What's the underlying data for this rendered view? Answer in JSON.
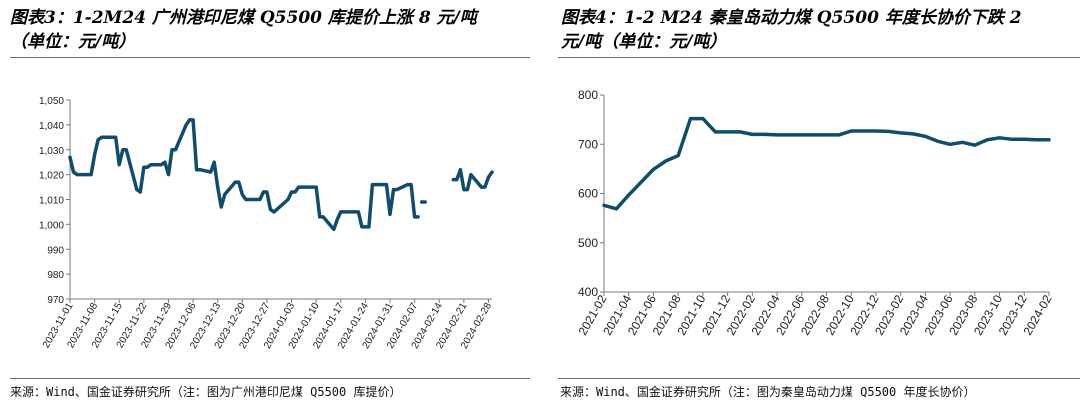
{
  "panels": {
    "left": {
      "title_line1": "图表3：1-2M24 广州港印尼煤 Q5500 库提价上涨 8 元/吨",
      "title_line2": "（单位：元/吨）",
      "source": "来源：Wind、国金证券研究所（注：图为广州港印尼煤 Q5500 库提价）"
    },
    "right": {
      "title_line1": "图表4：1-2 M24 秦皇岛动力煤 Q5500 年度长协价下跌 2",
      "title_line2": "元/吨（单位：元/吨）",
      "source": "来源：Wind、国金证券研究所（注：图为秦皇岛动力煤 Q5500 年度长协价）"
    }
  },
  "colors": {
    "line": "#0f4c6e",
    "axis": "#7a7a7a"
  },
  "chart_data": [
    {
      "type": "line",
      "title": "",
      "xlabel": "",
      "ylabel": "",
      "ylim": [
        970,
        1050
      ],
      "yticks": [
        970,
        980,
        990,
        1000,
        1010,
        1020,
        1030,
        1040,
        1050
      ],
      "ytick_labels": [
        "970",
        "980",
        "990",
        "1,000",
        "1,010",
        "1,020",
        "1,030",
        "1,040",
        "1,050"
      ],
      "xlim": [
        "2023-11-01",
        "2024-02-29"
      ],
      "xtick_labels": [
        "2023-11-01",
        "2023-11-08",
        "2023-11-15",
        "2023-11-22",
        "2023-11-29",
        "2023-12-06",
        "2023-12-13",
        "2023-12-20",
        "2023-12-27",
        "2024-01-03",
        "2024-01-10",
        "2024-01-17",
        "2024-01-24",
        "2024-01-31",
        "2024-02-07",
        "2024-02-14",
        "2024-02-21",
        "2024-02-28"
      ],
      "grid": false,
      "series": [
        {
          "segments": [
            [
              [
                "2023-11-01",
                1027
              ],
              [
                "2023-11-02",
                1021
              ],
              [
                "2023-11-03",
                1020
              ],
              [
                "2023-11-06",
                1020
              ],
              [
                "2023-11-07",
                1020
              ],
              [
                "2023-11-08",
                1028
              ],
              [
                "2023-11-09",
                1034
              ],
              [
                "2023-11-10",
                1035
              ],
              [
                "2023-11-13",
                1035
              ],
              [
                "2023-11-14",
                1035
              ],
              [
                "2023-11-15",
                1024
              ],
              [
                "2023-11-16",
                1030
              ],
              [
                "2023-11-17",
                1030
              ],
              [
                "2023-11-20",
                1014
              ],
              [
                "2023-11-21",
                1013
              ],
              [
                "2023-11-22",
                1023
              ],
              [
                "2023-11-23",
                1023
              ],
              [
                "2023-11-24",
                1024
              ],
              [
                "2023-11-27",
                1024
              ],
              [
                "2023-11-28",
                1025
              ],
              [
                "2023-11-29",
                1020
              ],
              [
                "2023-11-30",
                1030
              ],
              [
                "2023-12-01",
                1030
              ],
              [
                "2023-12-04",
                1040
              ],
              [
                "2023-12-05",
                1042
              ],
              [
                "2023-12-06",
                1042
              ],
              [
                "2023-12-07",
                1022
              ],
              [
                "2023-12-08",
                1022
              ],
              [
                "2023-12-11",
                1021
              ],
              [
                "2023-12-12",
                1025
              ],
              [
                "2023-12-13",
                1015
              ],
              [
                "2023-12-14",
                1007
              ],
              [
                "2023-12-15",
                1012
              ],
              [
                "2023-12-18",
                1017
              ],
              [
                "2023-12-19",
                1017
              ],
              [
                "2023-12-20",
                1012
              ],
              [
                "2023-12-21",
                1010
              ],
              [
                "2023-12-22",
                1010
              ],
              [
                "2023-12-25",
                1010
              ],
              [
                "2023-12-26",
                1013
              ],
              [
                "2023-12-27",
                1013
              ],
              [
                "2023-12-28",
                1006
              ],
              [
                "2023-12-29",
                1005
              ],
              [
                "2024-01-02",
                1010
              ],
              [
                "2024-01-03",
                1013
              ],
              [
                "2024-01-04",
                1013
              ],
              [
                "2024-01-05",
                1015
              ],
              [
                "2024-01-08",
                1015
              ],
              [
                "2024-01-09",
                1015
              ],
              [
                "2024-01-10",
                1015
              ],
              [
                "2024-01-11",
                1003
              ],
              [
                "2024-01-12",
                1003
              ],
              [
                "2024-01-15",
                998
              ],
              [
                "2024-01-16",
                1002
              ],
              [
                "2024-01-17",
                1005
              ],
              [
                "2024-01-18",
                1005
              ],
              [
                "2024-01-19",
                1005
              ],
              [
                "2024-01-22",
                1005
              ],
              [
                "2024-01-23",
                999
              ],
              [
                "2024-01-24",
                999
              ],
              [
                "2024-01-25",
                999
              ],
              [
                "2024-01-26",
                1016
              ],
              [
                "2024-01-29",
                1016
              ],
              [
                "2024-01-30",
                1016
              ],
              [
                "2024-01-31",
                1004
              ],
              [
                "2024-02-01",
                1014
              ],
              [
                "2024-02-02",
                1014
              ],
              [
                "2024-02-05",
                1016
              ],
              [
                "2024-02-06",
                1016
              ],
              [
                "2024-02-07",
                1003
              ],
              [
                "2024-02-08",
                1003
              ]
            ],
            [
              [
                "2024-02-09",
                1009
              ],
              [
                "2024-02-10",
                1009
              ]
            ],
            [
              [
                "2024-02-18",
                1018
              ],
              [
                "2024-02-19",
                1018
              ],
              [
                "2024-02-20",
                1022
              ],
              [
                "2024-02-21",
                1014
              ],
              [
                "2024-02-22",
                1014
              ],
              [
                "2024-02-23",
                1020
              ],
              [
                "2024-02-26",
                1015
              ],
              [
                "2024-02-27",
                1015
              ],
              [
                "2024-02-28",
                1019
              ],
              [
                "2024-02-29",
                1021
              ]
            ]
          ]
        }
      ]
    },
    {
      "type": "line",
      "title": "",
      "xlabel": "",
      "ylabel": "",
      "ylim": [
        400,
        800
      ],
      "yticks": [
        400,
        500,
        600,
        700,
        800
      ],
      "ytick_labels": [
        "400",
        "500",
        "600",
        "700",
        "800"
      ],
      "xlim": [
        "2021-02",
        "2024-02"
      ],
      "xtick_labels": [
        "2021-02",
        "2021-04",
        "2021-06",
        "2021-08",
        "2021-10",
        "2021-12",
        "2022-02",
        "2022-04",
        "2022-06",
        "2022-08",
        "2022-10",
        "2022-12",
        "2023-02",
        "2023-04",
        "2023-06",
        "2023-08",
        "2023-10",
        "2023-12",
        "2024-02"
      ],
      "grid": false,
      "series": [
        {
          "x": [
            "2021-02",
            "2021-03",
            "2021-04",
            "2021-05",
            "2021-06",
            "2021-07",
            "2021-08",
            "2021-09",
            "2021-10",
            "2021-11",
            "2021-12",
            "2022-01",
            "2022-02",
            "2022-03",
            "2022-04",
            "2022-05",
            "2022-06",
            "2022-07",
            "2022-08",
            "2022-09",
            "2022-10",
            "2022-11",
            "2022-12",
            "2023-01",
            "2023-02",
            "2023-03",
            "2023-04",
            "2023-05",
            "2023-06",
            "2023-07",
            "2023-08",
            "2023-09",
            "2023-10",
            "2023-11",
            "2023-12",
            "2024-01",
            "2024-02"
          ],
          "values": [
            576,
            569,
            597,
            623,
            649,
            666,
            677,
            752,
            752,
            725,
            725,
            725,
            720,
            720,
            719,
            719,
            719,
            719,
            719,
            719,
            727,
            727,
            727,
            726,
            723,
            721,
            716,
            706,
            700,
            704,
            698,
            709,
            713,
            710,
            710,
            709,
            709
          ]
        }
      ]
    }
  ]
}
